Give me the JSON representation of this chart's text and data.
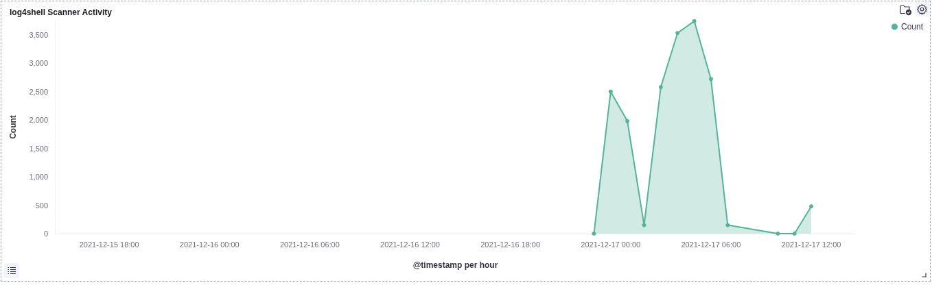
{
  "chart_data": {
    "type": "area",
    "title": "log4shell Scanner Activity",
    "xlabel": "@timestamp per hour",
    "ylabel": "Count",
    "series": [
      {
        "name": "Count",
        "color": "#54b399",
        "x": [
          "2021-12-16T23:00",
          "2021-12-17T00:00",
          "2021-12-17T01:00",
          "2021-12-17T02:00",
          "2021-12-17T03:00",
          "2021-12-17T04:00",
          "2021-12-17T05:00",
          "2021-12-17T06:00",
          "2021-12-17T07:00",
          "2021-12-17T10:00",
          "2021-12-17T11:00",
          "2021-12-17T12:00"
        ],
        "values": [
          0,
          2500,
          1980,
          150,
          2580,
          3530,
          3740,
          2720,
          150,
          0,
          0,
          480
        ]
      }
    ],
    "xlim": [
      "2021-12-15T14:45",
      "2021-12-17T14:40"
    ],
    "xticks": [
      {
        "value": "2021-12-15T18:00",
        "label": "2021-12-15 18:00"
      },
      {
        "value": "2021-12-16T00:00",
        "label": "2021-12-16 00:00"
      },
      {
        "value": "2021-12-16T06:00",
        "label": "2021-12-16 06:00"
      },
      {
        "value": "2021-12-16T12:00",
        "label": "2021-12-16 12:00"
      },
      {
        "value": "2021-12-16T18:00",
        "label": "2021-12-16 18:00"
      },
      {
        "value": "2021-12-17T00:00",
        "label": "2021-12-17 00:00"
      },
      {
        "value": "2021-12-17T06:00",
        "label": "2021-12-17 06:00"
      },
      {
        "value": "2021-12-17T12:00",
        "label": "2021-12-17 12:00"
      }
    ],
    "ylim": [
      0,
      3750
    ],
    "yticks": [
      0,
      500,
      {
        "value": 1000,
        "label": "1,000"
      },
      {
        "value": 1500,
        "label": "1,500"
      },
      {
        "value": 2000,
        "label": "2,000"
      },
      {
        "value": 2500,
        "label": "2,500"
      },
      {
        "value": 3000,
        "label": "3,000"
      },
      {
        "value": 3500,
        "label": "3,500"
      }
    ],
    "grid": false,
    "legend": "top right",
    "marker": "circle",
    "line_style": "solid"
  }
}
